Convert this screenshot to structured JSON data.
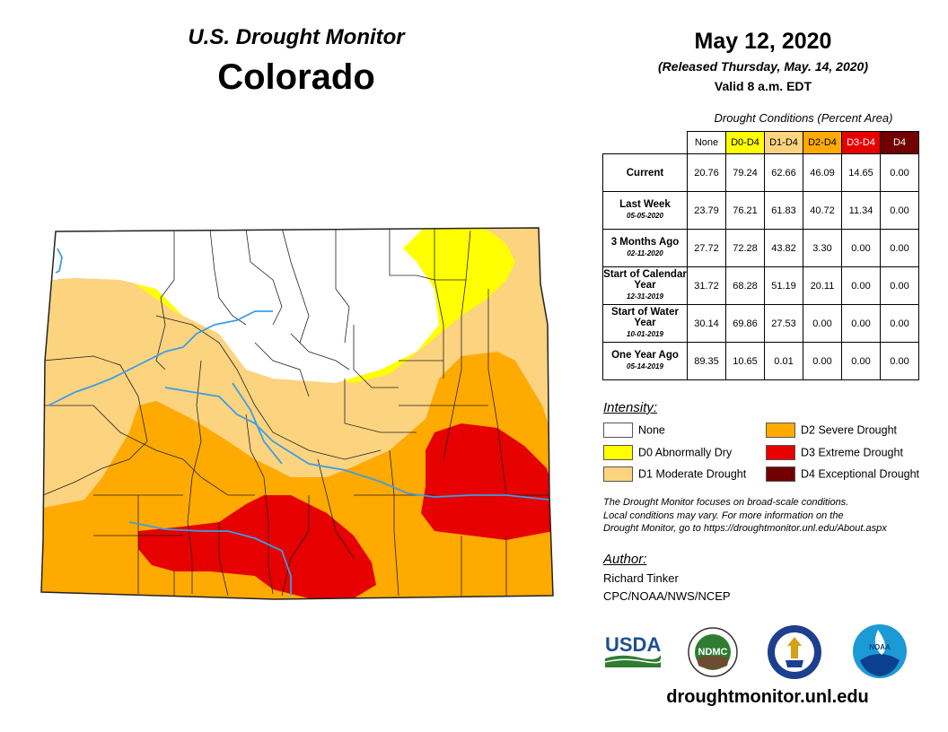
{
  "header": {
    "subtitle": "U.S. Drought Monitor",
    "state": "Colorado",
    "date": "May 12, 2020",
    "released": "(Released Thursday, May. 14, 2020)",
    "valid": "Valid 8 a.m. EDT"
  },
  "conditions": {
    "caption": "Drought Conditions (Percent Area)",
    "columns": [
      {
        "label": "None",
        "bg": "#ffffff",
        "fg": "#000000"
      },
      {
        "label": "D0-D4",
        "bg": "#ffff00",
        "fg": "#000000"
      },
      {
        "label": "D1-D4",
        "bg": "#fcd37f",
        "fg": "#000000"
      },
      {
        "label": "D2-D4",
        "bg": "#ffaa00",
        "fg": "#000000"
      },
      {
        "label": "D3-D4",
        "bg": "#e60000",
        "fg": "#ffffff"
      },
      {
        "label": "D4",
        "bg": "#730000",
        "fg": "#ffffff"
      }
    ],
    "rows": [
      {
        "label": "Current",
        "date": "",
        "values": [
          "20.76",
          "79.24",
          "62.66",
          "46.09",
          "14.65",
          "0.00"
        ]
      },
      {
        "label": "Last Week",
        "date": "05-05-2020",
        "values": [
          "23.79",
          "76.21",
          "61.83",
          "40.72",
          "11.34",
          "0.00"
        ]
      },
      {
        "label": "3 Months Ago",
        "date": "02-11-2020",
        "values": [
          "27.72",
          "72.28",
          "43.82",
          "3.30",
          "0.00",
          "0.00"
        ]
      },
      {
        "label": "Start of Calendar Year",
        "date": "12-31-2019",
        "values": [
          "31.72",
          "68.28",
          "51.19",
          "20.11",
          "0.00",
          "0.00"
        ]
      },
      {
        "label": "Start of Water Year",
        "date": "10-01-2019",
        "values": [
          "30.14",
          "69.86",
          "27.53",
          "0.00",
          "0.00",
          "0.00"
        ]
      },
      {
        "label": "One Year Ago",
        "date": "05-14-2019",
        "values": [
          "89.35",
          "10.65",
          "0.01",
          "0.00",
          "0.00",
          "0.00"
        ]
      }
    ]
  },
  "legend": {
    "title": "Intensity:",
    "items": [
      {
        "label": "None",
        "color": "#ffffff"
      },
      {
        "label": "D0 Abnormally Dry",
        "color": "#ffff00"
      },
      {
        "label": "D1 Moderate Drought",
        "color": "#fcd37f"
      },
      {
        "label": "D2 Severe Drought",
        "color": "#ffaa00"
      },
      {
        "label": "D3 Extreme Drought",
        "color": "#e60000"
      },
      {
        "label": "D4 Exceptional Drought",
        "color": "#730000"
      }
    ]
  },
  "note": {
    "line1": "The Drought Monitor focuses on broad-scale conditions.",
    "line2": "Local conditions may vary. For more information on the",
    "line3": "Drought Monitor, go to https://droughtmonitor.unl.edu/About.aspx"
  },
  "author": {
    "title": "Author:",
    "name": "Richard Tinker",
    "org": "CPC/NOAA/NWS/NCEP"
  },
  "logos": {
    "usda": "USDA",
    "ndmc": "NDMC",
    "noaa": "NOAA"
  },
  "website": "droughtmonitor.unl.edu",
  "colors": {
    "none": "#ffffff",
    "d0": "#ffff00",
    "d1": "#fcd37f",
    "d2": "#ffaa00",
    "d3": "#e60000",
    "d4": "#730000",
    "river": "#3b9ee8"
  }
}
